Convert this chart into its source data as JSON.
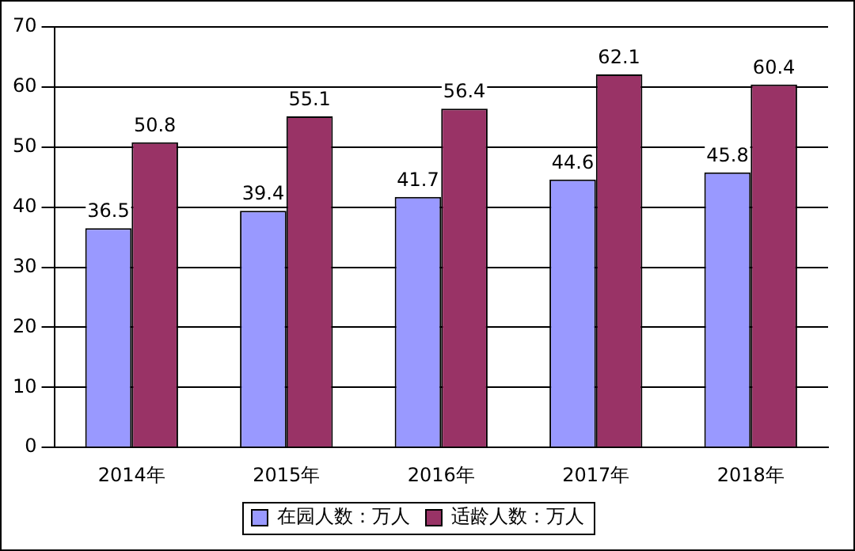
{
  "chart_data": {
    "type": "bar",
    "categories": [
      "2014年",
      "2015年",
      "2016年",
      "2017年",
      "2018年"
    ],
    "series": [
      {
        "name": "在园人数：万人",
        "color": "#9999ff",
        "values": [
          36.5,
          39.4,
          41.7,
          44.6,
          45.8
        ]
      },
      {
        "name": "适龄人数：万人",
        "color": "#993366",
        "values": [
          50.8,
          55.1,
          56.4,
          62.1,
          60.4
        ]
      }
    ],
    "ylim": [
      0,
      70
    ],
    "yticks": [
      0,
      10,
      20,
      30,
      40,
      50,
      60,
      70
    ],
    "grid": "y",
    "legend": "bottom",
    "data_labels": true
  }
}
